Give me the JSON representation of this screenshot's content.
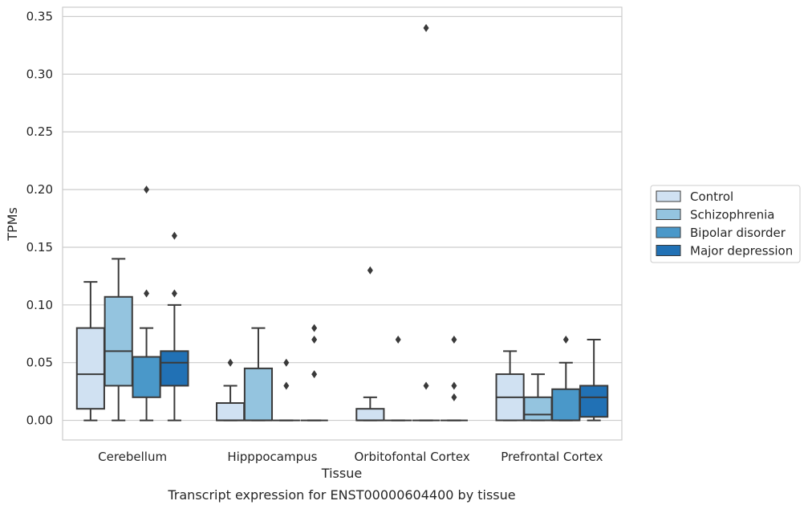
{
  "caption": "Transcript expression for ENST00000604400 by tissue",
  "chart_data": {
    "type": "box",
    "xlabel": "Tissue",
    "ylabel": "TPMs",
    "ylim": [
      -0.017,
      0.358
    ],
    "yticks": [
      "0.00",
      "0.05",
      "0.10",
      "0.15",
      "0.20",
      "0.25",
      "0.30",
      "0.35"
    ],
    "grid": "horizontal",
    "legend_position": "right",
    "categories": [
      "Cerebellum",
      "Hipppocampus",
      "Orbitofontal Cortex",
      "Prefrontal Cortex"
    ],
    "series": [
      {
        "name": "Control",
        "color": "#d0e1f2",
        "boxes": [
          {
            "whisker_low": 0.0,
            "q1": 0.01,
            "median": 0.04,
            "q3": 0.08,
            "whisker_high": 0.12,
            "outliers": []
          },
          {
            "whisker_low": 0.0,
            "q1": 0.0,
            "median": 0.0,
            "q3": 0.015,
            "whisker_high": 0.03,
            "outliers": [
              0.05
            ]
          },
          {
            "whisker_low": 0.0,
            "q1": 0.0,
            "median": 0.0,
            "q3": 0.01,
            "whisker_high": 0.02,
            "outliers": [
              0.13
            ]
          },
          {
            "whisker_low": 0.0,
            "q1": 0.0,
            "median": 0.02,
            "q3": 0.04,
            "whisker_high": 0.06,
            "outliers": []
          }
        ]
      },
      {
        "name": "Schizophrenia",
        "color": "#94c4df",
        "boxes": [
          {
            "whisker_low": 0.0,
            "q1": 0.03,
            "median": 0.06,
            "q3": 0.107,
            "whisker_high": 0.14,
            "outliers": []
          },
          {
            "whisker_low": 0.0,
            "q1": 0.0,
            "median": 0.0,
            "q3": 0.045,
            "whisker_high": 0.08,
            "outliers": []
          },
          {
            "whisker_low": 0.0,
            "q1": 0.0,
            "median": 0.0,
            "q3": 0.0,
            "whisker_high": 0.0,
            "outliers": [
              0.07
            ]
          },
          {
            "whisker_low": 0.0,
            "q1": 0.0,
            "median": 0.005,
            "q3": 0.02,
            "whisker_high": 0.04,
            "outliers": []
          }
        ]
      },
      {
        "name": "Bipolar disorder",
        "color": "#4a98c9",
        "boxes": [
          {
            "whisker_low": 0.0,
            "q1": 0.02,
            "median": 0.055,
            "q3": 0.055,
            "whisker_high": 0.08,
            "outliers": [
              0.11,
              0.2
            ]
          },
          {
            "whisker_low": 0.0,
            "q1": 0.0,
            "median": 0.0,
            "q3": 0.0,
            "whisker_high": 0.0,
            "outliers": [
              0.03,
              0.05
            ]
          },
          {
            "whisker_low": 0.0,
            "q1": 0.0,
            "median": 0.0,
            "q3": 0.0,
            "whisker_high": 0.0,
            "outliers": [
              0.03,
              0.34
            ]
          },
          {
            "whisker_low": 0.0,
            "q1": 0.0,
            "median": 0.0,
            "q3": 0.027,
            "whisker_high": 0.05,
            "outliers": [
              0.07
            ]
          }
        ]
      },
      {
        "name": "Major depression",
        "color": "#2171b5",
        "boxes": [
          {
            "whisker_low": 0.0,
            "q1": 0.03,
            "median": 0.05,
            "q3": 0.06,
            "whisker_high": 0.1,
            "outliers": [
              0.11,
              0.16
            ]
          },
          {
            "whisker_low": 0.0,
            "q1": 0.0,
            "median": 0.0,
            "q3": 0.0,
            "whisker_high": 0.0,
            "outliers": [
              0.04,
              0.07,
              0.08
            ]
          },
          {
            "whisker_low": 0.0,
            "q1": 0.0,
            "median": 0.0,
            "q3": 0.0,
            "whisker_high": 0.0,
            "outliers": [
              0.02,
              0.03,
              0.07
            ]
          },
          {
            "whisker_low": 0.0,
            "q1": 0.003,
            "median": 0.02,
            "q3": 0.03,
            "whisker_high": 0.07,
            "outliers": []
          }
        ]
      }
    ]
  }
}
